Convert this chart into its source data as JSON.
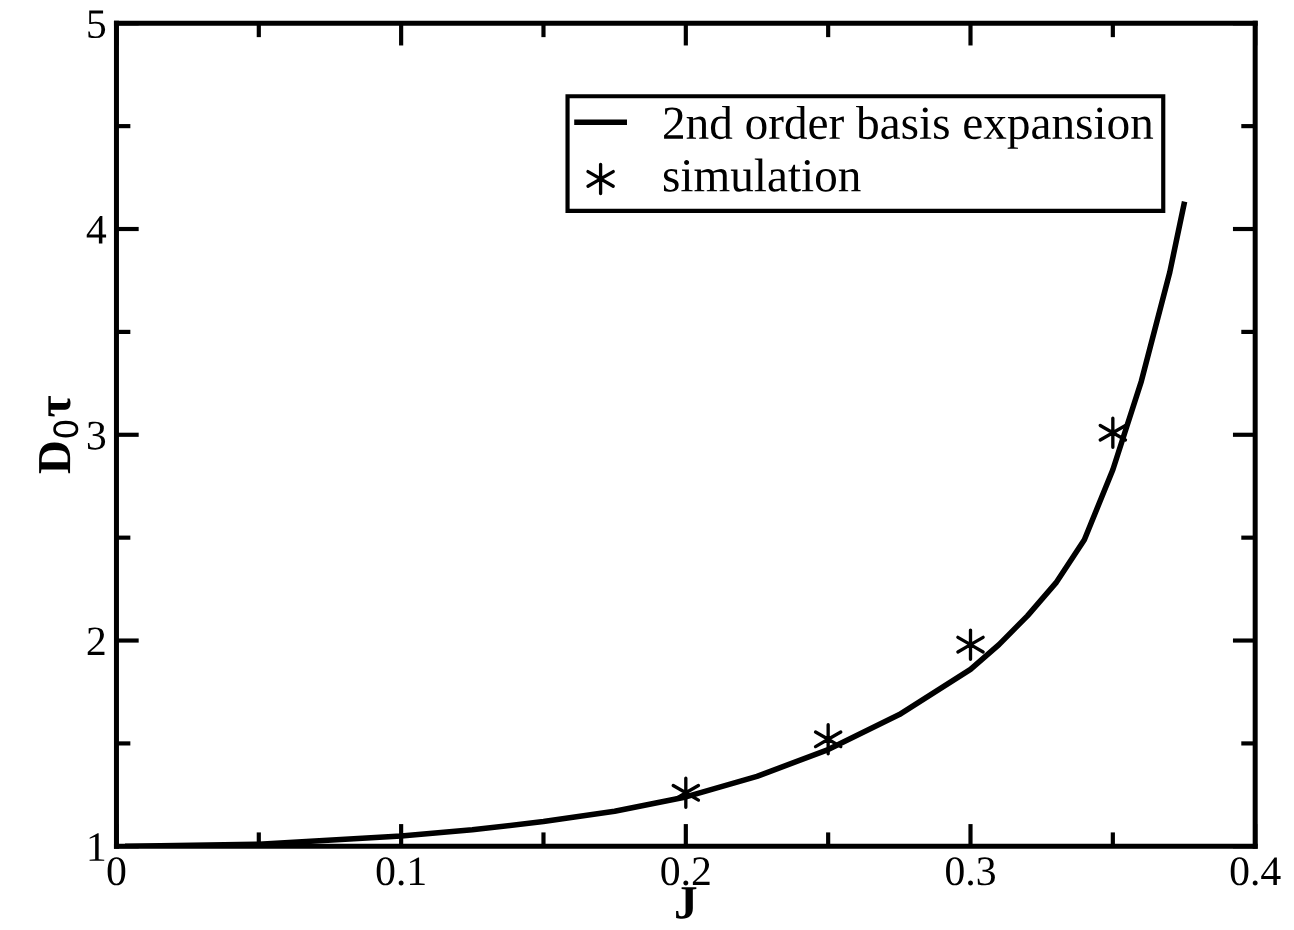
{
  "chart_data": {
    "type": "line",
    "xlabel": "J",
    "ylabel": "D$_{0}$τ",
    "xlim": [
      0,
      0.4
    ],
    "ylim": [
      1,
      5
    ],
    "xticks": [
      0,
      {
        "value": 0.05,
        "label": null
      },
      0.1,
      {
        "value": 0.15,
        "label": null
      },
      0.2,
      {
        "value": 0.25,
        "label": null
      },
      0.3,
      {
        "value": 0.35,
        "label": null
      },
      0.4
    ],
    "yticks": [
      1,
      {
        "value": 1.5,
        "label": null
      },
      2,
      {
        "value": 2.5,
        "label": null
      },
      3,
      {
        "value": 3.5,
        "label": null
      },
      4,
      {
        "value": 4.5,
        "label": null
      },
      5
    ],
    "grid": false,
    "legend": "top right",
    "series": [
      {
        "name": "2nd order basis expansion",
        "color": "#000000",
        "marker": "none",
        "line_style": "solid",
        "x": [
          0.004,
          0.05,
          0.1,
          0.125,
          0.15,
          0.175,
          0.2,
          0.225,
          0.25,
          0.275,
          0.3,
          0.31,
          0.32,
          0.33,
          0.34,
          0.35,
          0.36,
          0.37,
          0.375
        ],
        "values": [
          1.0,
          1.01,
          1.05,
          1.08,
          1.12,
          1.17,
          1.24,
          1.34,
          1.47,
          1.64,
          1.86,
          1.98,
          2.12,
          2.28,
          2.49,
          2.83,
          3.26,
          3.79,
          4.12
        ]
      },
      {
        "name": "simulation",
        "type": "scatter",
        "color": "#000000",
        "marker": "cross",
        "x": [
          0.2,
          0.25,
          0.3,
          0.35
        ],
        "values": [
          1.26,
          1.52,
          1.98,
          3.01
        ]
      }
    ]
  }
}
